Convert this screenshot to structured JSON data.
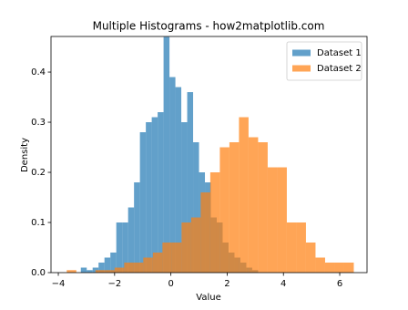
{
  "chart_data": {
    "type": "histogram",
    "title": "Multiple Histograms - how2matplotlib.com",
    "x_label": "Value",
    "y_label": "Density",
    "series": [
      {
        "name": "Dataset 1",
        "color": "#1f77b4",
        "opacity": 0.7,
        "bins": [
          -3.2,
          -2.99,
          -2.78,
          -2.57,
          -2.36,
          -2.15,
          -1.94,
          -1.73,
          -1.52,
          -1.31,
          -1.1,
          -0.89,
          -0.68,
          -0.47,
          -0.26,
          -0.05,
          0.16,
          0.37,
          0.58,
          0.79,
          1.0,
          1.21,
          1.42,
          1.63,
          1.84,
          2.05,
          2.26,
          2.47,
          2.68,
          2.89,
          3.1
        ],
        "values": [
          0.01,
          0.005,
          0.01,
          0.02,
          0.03,
          0.04,
          0.1,
          0.1,
          0.13,
          0.18,
          0.28,
          0.3,
          0.31,
          0.32,
          0.47,
          0.39,
          0.37,
          0.3,
          0.36,
          0.26,
          0.2,
          0.18,
          0.11,
          0.1,
          0.06,
          0.04,
          0.03,
          0.02,
          0.01,
          0.005
        ]
      },
      {
        "name": "Dataset 2",
        "color": "#ff7f0e",
        "opacity": 0.7,
        "bins": [
          -3.7,
          -3.36,
          -3.02,
          -2.68,
          -2.34,
          -2.0,
          -1.66,
          -1.32,
          -0.98,
          -0.64,
          -0.3,
          0.04,
          0.38,
          0.72,
          1.06,
          1.4,
          1.74,
          2.08,
          2.42,
          2.76,
          3.1,
          3.44,
          3.78,
          4.12,
          4.46,
          4.8,
          5.14,
          5.48,
          5.82,
          6.16,
          6.5
        ],
        "values": [
          0.005,
          0,
          0,
          0.005,
          0.005,
          0.01,
          0.02,
          0.02,
          0.03,
          0.04,
          0.06,
          0.06,
          0.1,
          0.11,
          0.16,
          0.2,
          0.25,
          0.26,
          0.31,
          0.27,
          0.26,
          0.21,
          0.21,
          0.1,
          0.1,
          0.06,
          0.03,
          0.02,
          0.02,
          0.02
        ]
      }
    ],
    "xlim": [
      -4.26,
      6.97
    ],
    "ylim": [
      0,
      0.471
    ],
    "xticks": [
      {
        "value": -4,
        "label": "−4"
      },
      {
        "value": -2,
        "label": "−2"
      },
      0,
      2,
      4,
      6
    ],
    "yticks": [
      {
        "value": 0,
        "label": "0.0"
      },
      0.1,
      0.2,
      0.3,
      0.4
    ],
    "legend": "upper right"
  }
}
